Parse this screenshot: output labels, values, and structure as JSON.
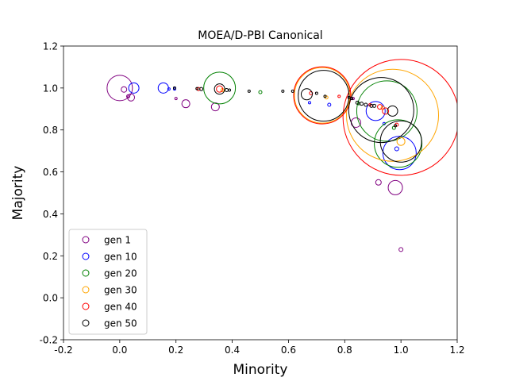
{
  "chart_data": {
    "type": "scatter",
    "title": "MOEA/D-PBI Canonical",
    "xlabel": "Minority",
    "ylabel": "Majority",
    "xlim": [
      -0.2,
      1.2
    ],
    "ylim": [
      -0.2,
      1.2
    ],
    "x_ticks": [
      "-0.2",
      "0.0",
      "0.2",
      "0.4",
      "0.6",
      "0.8",
      "1.0",
      "1.2"
    ],
    "y_ticks": [
      "-0.2",
      "0.0",
      "0.2",
      "0.4",
      "0.6",
      "0.8",
      "1.0",
      "1.2"
    ],
    "grid": false,
    "legend_position": "lower-left",
    "marker": "hollow circle, size varies by point",
    "series": [
      {
        "name": "gen 1",
        "color": "#800080",
        "points": [
          {
            "x": 0.0,
            "y": 1.0,
            "s": 16
          },
          {
            "x": 0.015,
            "y": 0.993,
            "s": 3.5
          },
          {
            "x": 0.03,
            "y": 0.96,
            "s": 2
          },
          {
            "x": 0.04,
            "y": 0.955,
            "s": 4.5
          },
          {
            "x": 0.2,
            "y": 0.95,
            "s": 1.5
          },
          {
            "x": 0.235,
            "y": 0.925,
            "s": 5
          },
          {
            "x": 0.34,
            "y": 0.91,
            "s": 5
          },
          {
            "x": 0.83,
            "y": 0.95,
            "s": 1.5
          },
          {
            "x": 0.84,
            "y": 0.835,
            "s": 6
          },
          {
            "x": 0.92,
            "y": 0.55,
            "s": 3.5
          },
          {
            "x": 0.98,
            "y": 0.525,
            "s": 9
          },
          {
            "x": 1.0,
            "y": 0.23,
            "s": 2.5
          }
        ]
      },
      {
        "name": "gen 10",
        "color": "#0000ff",
        "points": [
          {
            "x": 0.05,
            "y": 1.0,
            "s": 6.5
          },
          {
            "x": 0.155,
            "y": 1.0,
            "s": 6.5
          },
          {
            "x": 0.175,
            "y": 0.995,
            "s": 1.5
          },
          {
            "x": 0.195,
            "y": 0.995,
            "s": 1.5
          },
          {
            "x": 0.675,
            "y": 0.93,
            "s": 1.5
          },
          {
            "x": 0.745,
            "y": 0.92,
            "s": 2
          },
          {
            "x": 0.91,
            "y": 0.89,
            "s": 12
          },
          {
            "x": 0.94,
            "y": 0.83,
            "s": 1.5
          },
          {
            "x": 0.985,
            "y": 0.71,
            "s": 2.5
          },
          {
            "x": 0.995,
            "y": 0.69,
            "s": 21
          }
        ]
      },
      {
        "name": "gen 20",
        "color": "#008000",
        "points": [
          {
            "x": 0.355,
            "y": 1.0,
            "s": 20
          },
          {
            "x": 0.5,
            "y": 0.98,
            "s": 2
          },
          {
            "x": 0.85,
            "y": 0.925,
            "s": 1.5
          },
          {
            "x": 0.95,
            "y": 0.89,
            "s": 38
          },
          {
            "x": 0.975,
            "y": 0.81,
            "s": 2
          },
          {
            "x": 0.99,
            "y": 0.735,
            "s": 30
          }
        ]
      },
      {
        "name": "gen 30",
        "color": "#ffa500",
        "points": [
          {
            "x": 0.365,
            "y": 0.99,
            "s": 2
          },
          {
            "x": 0.72,
            "y": 0.965,
            "s": 35
          },
          {
            "x": 0.735,
            "y": 0.955,
            "s": 2
          },
          {
            "x": 0.935,
            "y": 0.905,
            "s": 2
          },
          {
            "x": 0.97,
            "y": 0.87,
            "s": 58
          },
          {
            "x": 1.0,
            "y": 0.745,
            "s": 5
          }
        ]
      },
      {
        "name": "gen 40",
        "color": "#ff0000",
        "points": [
          {
            "x": 0.28,
            "y": 0.995,
            "s": 2
          },
          {
            "x": 0.355,
            "y": 0.995,
            "s": 4
          },
          {
            "x": 0.68,
            "y": 0.975,
            "s": 2
          },
          {
            "x": 0.72,
            "y": 0.965,
            "s": 36
          },
          {
            "x": 0.78,
            "y": 0.96,
            "s": 1.5
          },
          {
            "x": 0.89,
            "y": 0.92,
            "s": 1.5
          },
          {
            "x": 0.925,
            "y": 0.91,
            "s": 3
          },
          {
            "x": 0.945,
            "y": 0.89,
            "s": 4
          },
          {
            "x": 0.985,
            "y": 0.825,
            "s": 2
          },
          {
            "x": 1.0,
            "y": 0.86,
            "s": 73
          }
        ]
      },
      {
        "name": "gen 50",
        "color": "#000000",
        "points": [
          {
            "x": 0.195,
            "y": 1.0,
            "s": 1.5
          },
          {
            "x": 0.275,
            "y": 0.997,
            "s": 1.5
          },
          {
            "x": 0.29,
            "y": 0.995,
            "s": 2
          },
          {
            "x": 0.355,
            "y": 0.995,
            "s": 6.5
          },
          {
            "x": 0.38,
            "y": 0.99,
            "s": 2
          },
          {
            "x": 0.39,
            "y": 0.99,
            "s": 1.5
          },
          {
            "x": 0.46,
            "y": 0.985,
            "s": 1.5
          },
          {
            "x": 0.58,
            "y": 0.985,
            "s": 1.5
          },
          {
            "x": 0.615,
            "y": 0.985,
            "s": 1.5
          },
          {
            "x": 0.665,
            "y": 0.97,
            "s": 7
          },
          {
            "x": 0.7,
            "y": 0.975,
            "s": 1.5
          },
          {
            "x": 0.725,
            "y": 0.963,
            "s": 32
          },
          {
            "x": 0.73,
            "y": 0.96,
            "s": 1.5
          },
          {
            "x": 0.815,
            "y": 0.955,
            "s": 1.5
          },
          {
            "x": 0.825,
            "y": 0.95,
            "s": 1.5
          },
          {
            "x": 0.845,
            "y": 0.93,
            "s": 2
          },
          {
            "x": 0.86,
            "y": 0.925,
            "s": 2
          },
          {
            "x": 0.875,
            "y": 0.92,
            "s": 2
          },
          {
            "x": 0.895,
            "y": 0.915,
            "s": 2
          },
          {
            "x": 0.905,
            "y": 0.915,
            "s": 2
          },
          {
            "x": 0.93,
            "y": 0.895,
            "s": 41
          },
          {
            "x": 0.97,
            "y": 0.89,
            "s": 6.5
          },
          {
            "x": 0.98,
            "y": 0.82,
            "s": 1.5
          },
          {
            "x": 1.0,
            "y": 0.745,
            "s": 26
          }
        ]
      }
    ]
  }
}
